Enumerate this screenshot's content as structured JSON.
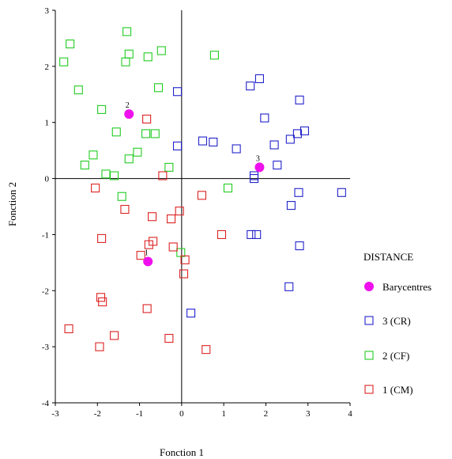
{
  "chart_data": {
    "type": "scatter",
    "xlabel": "Fonction 1",
    "ylabel": "Fonction 2",
    "xlim": [
      -3,
      4
    ],
    "ylim": [
      -4,
      3
    ],
    "xticks": [
      "-3",
      "-2",
      "-1",
      "0",
      "1",
      "2",
      "3",
      "4"
    ],
    "yticks": [
      "3",
      "2",
      "1",
      "0",
      "-1",
      "-2",
      "-3",
      "-4"
    ],
    "legend": {
      "title": "DISTANCE",
      "position": "right",
      "entries": [
        "Barycentres",
        "3 (CR)",
        "2 (CF)",
        "1 (CM)"
      ]
    },
    "colors": {
      "cr": "#2222cc",
      "cf": "#22cc22",
      "cm": "#dd2222",
      "barycentre": "#ee11ee"
    },
    "barycentres": [
      {
        "label": "2",
        "x": -1.25,
        "y": 1.15
      },
      {
        "label": "3",
        "x": 1.85,
        "y": 0.2
      },
      {
        "label": "1",
        "x": -0.8,
        "y": -1.48
      }
    ],
    "series": [
      {
        "name": "3 (CR)",
        "marker": "square",
        "points": [
          [
            1.63,
            1.65
          ],
          [
            1.85,
            1.78
          ],
          [
            2.8,
            1.4
          ],
          [
            1.97,
            1.08
          ],
          [
            -0.1,
            1.55
          ],
          [
            -0.1,
            0.58
          ],
          [
            0.5,
            0.67
          ],
          [
            0.75,
            0.65
          ],
          [
            1.3,
            0.53
          ],
          [
            2.2,
            0.6
          ],
          [
            2.58,
            0.7
          ],
          [
            2.75,
            0.8
          ],
          [
            2.92,
            0.85
          ],
          [
            2.27,
            0.24
          ],
          [
            1.72,
            0.05
          ],
          [
            1.72,
            0.0
          ],
          [
            2.78,
            -0.25
          ],
          [
            3.8,
            -0.25
          ],
          [
            2.6,
            -0.48
          ],
          [
            1.65,
            -1.0
          ],
          [
            1.78,
            -1.0
          ],
          [
            2.8,
            -1.2
          ],
          [
            2.55,
            -1.93
          ],
          [
            0.22,
            -2.4
          ]
        ]
      },
      {
        "name": "2 (CF)",
        "marker": "square",
        "points": [
          [
            -2.65,
            2.4
          ],
          [
            -1.3,
            2.62
          ],
          [
            -2.8,
            2.08
          ],
          [
            -1.25,
            2.22
          ],
          [
            -0.48,
            2.28
          ],
          [
            -0.8,
            2.17
          ],
          [
            -1.33,
            2.08
          ],
          [
            0.78,
            2.2
          ],
          [
            -2.45,
            1.58
          ],
          [
            -1.9,
            1.23
          ],
          [
            -0.55,
            1.62
          ],
          [
            -1.55,
            0.83
          ],
          [
            -0.85,
            0.8
          ],
          [
            -0.63,
            0.8
          ],
          [
            -2.1,
            0.42
          ],
          [
            -1.05,
            0.47
          ],
          [
            -1.25,
            0.35
          ],
          [
            -2.3,
            0.24
          ],
          [
            -0.3,
            0.2
          ],
          [
            -1.8,
            0.08
          ],
          [
            -1.6,
            0.05
          ],
          [
            -1.42,
            -0.32
          ],
          [
            1.1,
            -0.17
          ],
          [
            -0.02,
            -1.32
          ]
        ]
      },
      {
        "name": "1 (CM)",
        "marker": "square",
        "points": [
          [
            -0.83,
            1.06
          ],
          [
            -0.45,
            0.05
          ],
          [
            -2.05,
            -0.17
          ],
          [
            -1.35,
            -0.55
          ],
          [
            0.48,
            -0.3
          ],
          [
            -0.05,
            -0.58
          ],
          [
            -0.7,
            -0.68
          ],
          [
            -1.9,
            -1.07
          ],
          [
            -0.68,
            -1.12
          ],
          [
            -0.78,
            -1.18
          ],
          [
            -0.2,
            -1.22
          ],
          [
            -0.97,
            -1.37
          ],
          [
            0.08,
            -1.45
          ],
          [
            0.95,
            -1.0
          ],
          [
            0.05,
            -1.7
          ],
          [
            -1.92,
            -2.12
          ],
          [
            -1.88,
            -2.2
          ],
          [
            -0.82,
            -2.32
          ],
          [
            -2.68,
            -2.68
          ],
          [
            -1.6,
            -2.8
          ],
          [
            -0.3,
            -2.85
          ],
          [
            -1.95,
            -3.0
          ],
          [
            0.58,
            -3.05
          ],
          [
            -0.25,
            -0.72
          ]
        ]
      }
    ]
  }
}
